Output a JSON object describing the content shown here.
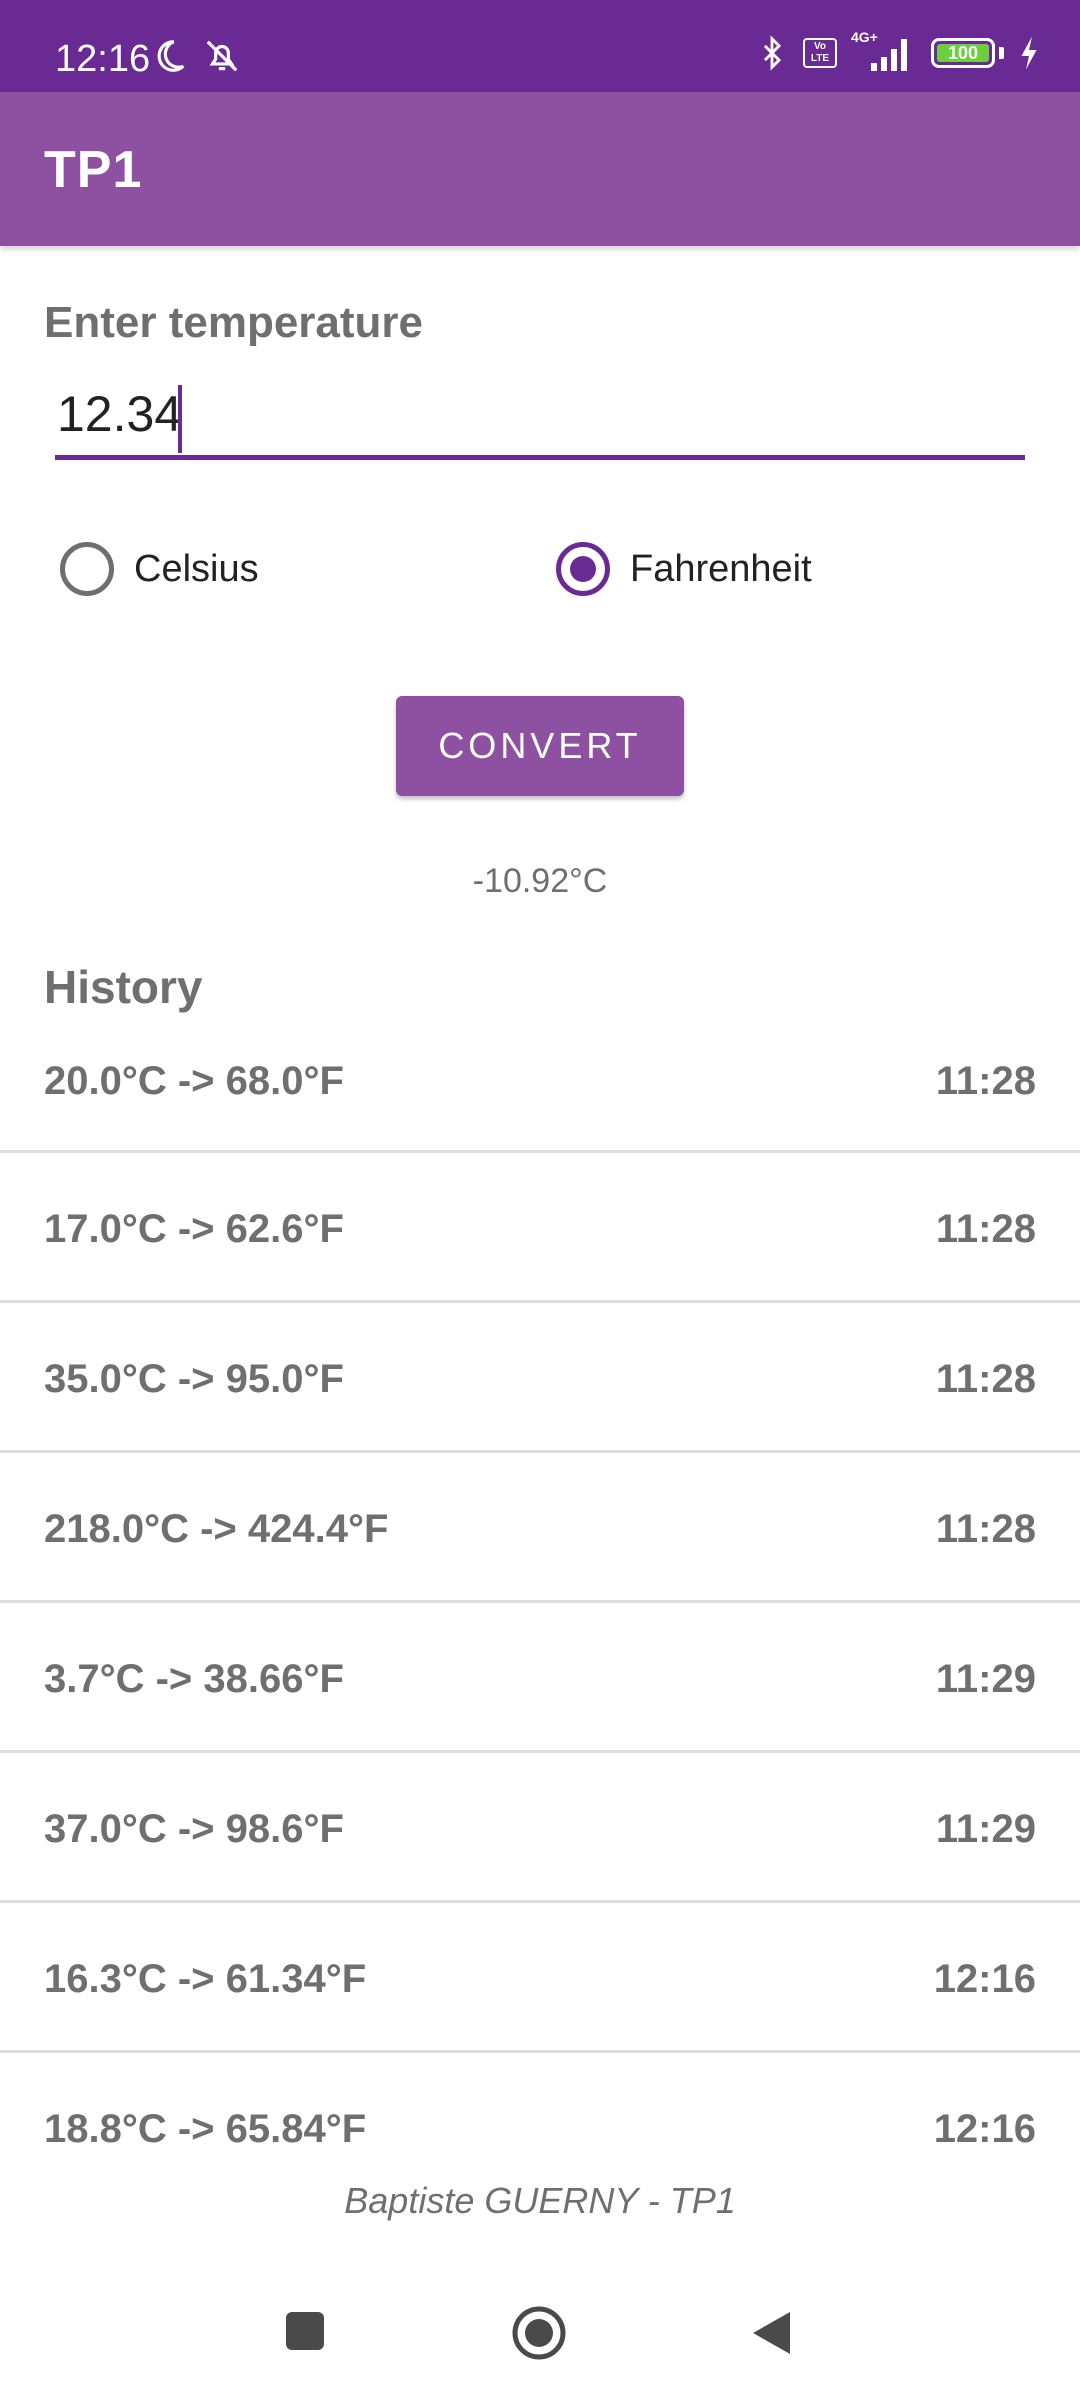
{
  "status_bar": {
    "time": "12:16",
    "network": "4G+",
    "volte": [
      "Vo",
      "LTE"
    ],
    "battery_level": "100",
    "battery_fraction": 1.0,
    "icons": [
      "moon-icon",
      "notifications-off-icon",
      "bluetooth-icon",
      "volte-icon",
      "signal-icon",
      "battery-icon",
      "charging-icon"
    ]
  },
  "app_bar": {
    "title": "TP1"
  },
  "form": {
    "label": "Enter temperature",
    "value": "12.34",
    "options": [
      {
        "label": "Celsius",
        "checked": false
      },
      {
        "label": "Fahrenheit",
        "checked": true
      }
    ],
    "convert_label": "CONVERT",
    "result": "-10.92°C"
  },
  "history": {
    "title": "History",
    "items": [
      {
        "conversion": "20.0°C -> 68.0°F",
        "time": "11:28"
      },
      {
        "conversion": "17.0°C -> 62.6°F",
        "time": "11:28"
      },
      {
        "conversion": "35.0°C -> 95.0°F",
        "time": "11:28"
      },
      {
        "conversion": "218.0°C -> 424.4°F",
        "time": "11:28"
      },
      {
        "conversion": "3.7°C -> 38.66°F",
        "time": "11:29"
      },
      {
        "conversion": "37.0°C -> 98.6°F",
        "time": "11:29"
      },
      {
        "conversion": "16.3°C -> 61.34°F",
        "time": "12:16"
      },
      {
        "conversion": "18.8°C -> 65.84°F",
        "time": "12:16"
      }
    ]
  },
  "footer": {
    "credit": "Baptiste GUERNY - TP1"
  },
  "colors": {
    "status_bar": "#6a2a93",
    "app_bar": "#8e51a1",
    "accent": "#6a2a93",
    "text_muted": "#6f6f6f",
    "battery_fill": "#6ccf3e"
  },
  "nav_bar": {
    "icons": [
      "recents-icon",
      "home-icon",
      "back-icon"
    ]
  }
}
